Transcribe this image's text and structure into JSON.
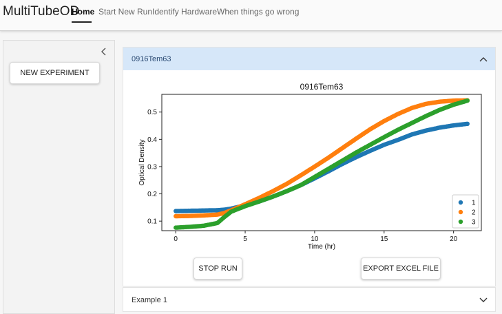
{
  "header": {
    "brand": "MultiTubeOD",
    "nav": [
      {
        "label": "Home",
        "active": true
      },
      {
        "label": "Start New Run",
        "active": false
      },
      {
        "label": "Identify Hardware",
        "active": false
      },
      {
        "label": "When things go wrong",
        "active": false
      }
    ]
  },
  "sidebar": {
    "collapse_icon": "chevron-left-icon",
    "new_experiment_label": "NEW EXPERIMENT"
  },
  "panels": [
    {
      "title": "0916Tem63",
      "expanded": true,
      "icon": "chevron-up-icon"
    },
    {
      "title": "Example 1",
      "expanded": false,
      "icon": "chevron-down-icon"
    }
  ],
  "buttons": {
    "stop_run": "STOP RUN",
    "export": "EXPORT EXCEL FILE"
  },
  "chart_data": {
    "type": "scatter",
    "title": "0916Tem63",
    "xlabel": "Time (hr)",
    "ylabel": "Optical Density",
    "xlim": [
      -1,
      22
    ],
    "ylim": [
      0.065,
      0.565
    ],
    "xticks": [
      0,
      5,
      10,
      15,
      20
    ],
    "yticks": [
      0.1,
      0.2,
      0.3,
      0.4,
      0.5
    ],
    "legend_position": "bottom-right",
    "series": [
      {
        "name": "1",
        "color": "#1f77b4",
        "x": [
          0,
          1,
          2,
          3,
          3.5,
          4,
          5,
          6,
          7,
          8,
          9,
          10,
          11,
          12,
          13,
          14,
          15,
          16,
          17,
          18,
          19,
          20,
          21
        ],
        "y": [
          0.137,
          0.138,
          0.139,
          0.14,
          0.142,
          0.146,
          0.158,
          0.172,
          0.19,
          0.21,
          0.232,
          0.257,
          0.283,
          0.31,
          0.335,
          0.358,
          0.38,
          0.398,
          0.418,
          0.432,
          0.443,
          0.451,
          0.457
        ]
      },
      {
        "name": "2",
        "color": "#ff7f0e",
        "x": [
          0,
          1,
          2,
          3,
          3.5,
          4,
          5,
          6,
          7,
          8,
          9,
          10,
          11,
          12,
          13,
          14,
          15,
          16,
          17,
          18,
          19,
          20,
          21
        ],
        "y": [
          0.118,
          0.119,
          0.121,
          0.124,
          0.13,
          0.14,
          0.162,
          0.185,
          0.21,
          0.237,
          0.268,
          0.3,
          0.333,
          0.368,
          0.403,
          0.437,
          0.467,
          0.493,
          0.515,
          0.53,
          0.538,
          0.542,
          0.543
        ]
      },
      {
        "name": "3",
        "color": "#2ca02c",
        "x": [
          0,
          1,
          2,
          3,
          3.5,
          4,
          5,
          6,
          7,
          8,
          9,
          10,
          11,
          12,
          13,
          14,
          15,
          16,
          17,
          18,
          19,
          20,
          21
        ],
        "y": [
          0.076,
          0.079,
          0.083,
          0.093,
          0.115,
          0.135,
          0.155,
          0.172,
          0.19,
          0.21,
          0.232,
          0.262,
          0.292,
          0.322,
          0.352,
          0.38,
          0.408,
          0.435,
          0.46,
          0.485,
          0.508,
          0.527,
          0.542
        ]
      }
    ]
  }
}
